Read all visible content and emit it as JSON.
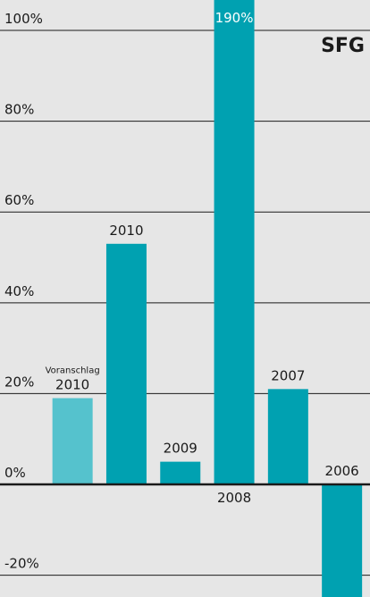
{
  "chart_data": {
    "type": "bar",
    "title": "SFG",
    "categories": [
      "2010",
      "2010",
      "2009",
      "2008",
      "2007",
      "2006"
    ],
    "annotation": "Voranschlag",
    "values": [
      19,
      53,
      5,
      190,
      21,
      -25
    ],
    "value_labels": [
      null,
      null,
      null,
      "190%",
      null,
      null
    ],
    "colors": [
      "#55c2cd",
      "#00a1b1",
      "#00a1b1",
      "#00a1b1",
      "#00a1b1",
      "#00a1b1"
    ],
    "ylim": [
      -24.8,
      106.7
    ],
    "yticks": [
      {
        "value": -20,
        "label": "-20%"
      },
      {
        "value": 0,
        "label": "0%"
      },
      {
        "value": 20,
        "label": "20%"
      },
      {
        "value": 40,
        "label": "40%"
      },
      {
        "value": 60,
        "label": "60%"
      },
      {
        "value": 80,
        "label": "80%"
      },
      {
        "value": 100,
        "label": "100%"
      }
    ],
    "grid": true
  }
}
